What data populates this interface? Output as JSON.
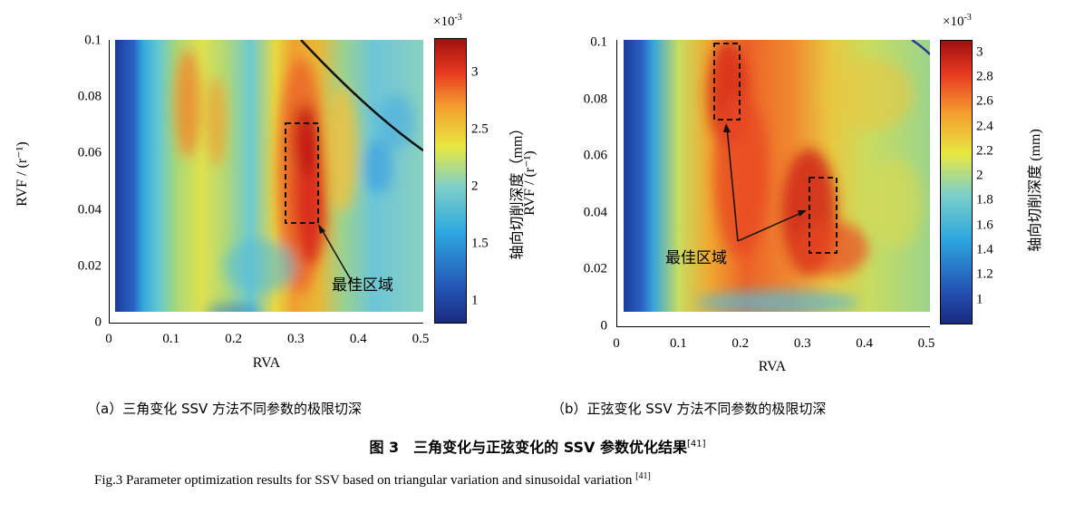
{
  "chart_data": [
    {
      "type": "heatmap",
      "panel": "a",
      "xlabel": "RVA",
      "ylabel": "RVF / (r⁻¹)",
      "xlim": [
        0,
        0.5
      ],
      "ylim": [
        0,
        0.1
      ],
      "x_ticks": [
        "0",
        "0.1",
        "0.2",
        "0.3",
        "0.4",
        "0.5"
      ],
      "y_ticks": [
        "0",
        "0.02",
        "0.04",
        "0.06",
        "0.08",
        "0.1"
      ],
      "colorbar": {
        "label": "轴向切削深度（mm）",
        "multiplier": "×10",
        "multiplier_exp": "-3",
        "range": [
          0.8,
          3.3
        ],
        "ticks": [
          "1",
          "1.5",
          "2",
          "2.5",
          "3"
        ],
        "colormap": [
          "#1a2a80",
          "#2060c0",
          "#2ea8e0",
          "#7fd0c8",
          "#e8e840",
          "#f5a030",
          "#e83a20",
          "#a01010"
        ]
      },
      "optimal_region": {
        "label": "最佳区域",
        "x_range": [
          0.28,
          0.33
        ],
        "y_range": [
          0.035,
          0.071
        ]
      },
      "boundary_curve": "solid black curve from top toward upper-right",
      "caption": "（a）三角变化 SSV 方法不同参数的极限切深"
    },
    {
      "type": "heatmap",
      "panel": "b",
      "xlabel": "RVA",
      "ylabel": "RVF / (r⁻¹)",
      "xlim": [
        0,
        0.5
      ],
      "ylim": [
        0,
        0.1
      ],
      "x_ticks": [
        "0",
        "0.1",
        "0.2",
        "0.3",
        "0.4",
        "0.5"
      ],
      "y_ticks": [
        "0",
        "0.02",
        "0.04",
        "0.06",
        "0.08",
        "0.1"
      ],
      "colorbar": {
        "label": "轴向切削深度 (mm)",
        "multiplier": "×10",
        "multiplier_exp": "-3",
        "range": [
          0.8,
          3.1
        ],
        "ticks": [
          "1",
          "1.2",
          "1.4",
          "1.6",
          "1.8",
          "2",
          "2.2",
          "2.4",
          "2.6",
          "2.8",
          "3"
        ],
        "colormap": [
          "#1a2a80",
          "#2060c0",
          "#2ea8e0",
          "#7fd0c8",
          "#e8e840",
          "#f5a030",
          "#e83a20",
          "#a01010"
        ]
      },
      "optimal_regions": [
        {
          "x_range": [
            0.16,
            0.2
          ],
          "y_range": [
            0.073,
            0.1
          ]
        },
        {
          "x_range": [
            0.31,
            0.35
          ],
          "y_range": [
            0.026,
            0.053
          ]
        }
      ],
      "annotation_label": "最佳区域",
      "caption": "（b）正弦变化 SSV 方法不同参数的极限切深"
    }
  ],
  "figure_caption": {
    "main": "图 3　三角变化与正弦变化的 SSV 参数优化结果",
    "ref": "[41]"
  },
  "english_caption": {
    "main": "Fig.3    Parameter optimization results for SSV based on triangular variation and sinusoidal variation ",
    "ref": "[41]"
  }
}
